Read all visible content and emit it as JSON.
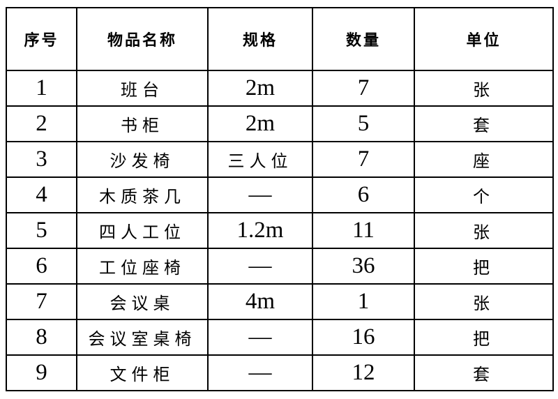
{
  "colors": {
    "background": "#ffffff",
    "border": "#000000",
    "text": "#000000"
  },
  "table": {
    "headers": [
      "序号",
      "物品名称",
      "规格",
      "数量",
      "单位"
    ],
    "rows": [
      [
        "1",
        "班台",
        "2m",
        "7",
        "张"
      ],
      [
        "2",
        "书柜",
        "2m",
        "5",
        "套"
      ],
      [
        "3",
        "沙发椅",
        "三人位",
        "7",
        "座"
      ],
      [
        "4",
        "木质茶几",
        "—",
        "6",
        "个"
      ],
      [
        "5",
        "四人工位",
        "1.2m",
        "11",
        "张"
      ],
      [
        "6",
        "工位座椅",
        "—",
        "36",
        "把"
      ],
      [
        "7",
        "会议桌",
        "4m",
        "1",
        "张"
      ],
      [
        "8",
        "会议室桌椅",
        "—",
        "16",
        "把"
      ],
      [
        "9",
        "文件柜",
        "—",
        "12",
        "套"
      ]
    ]
  }
}
